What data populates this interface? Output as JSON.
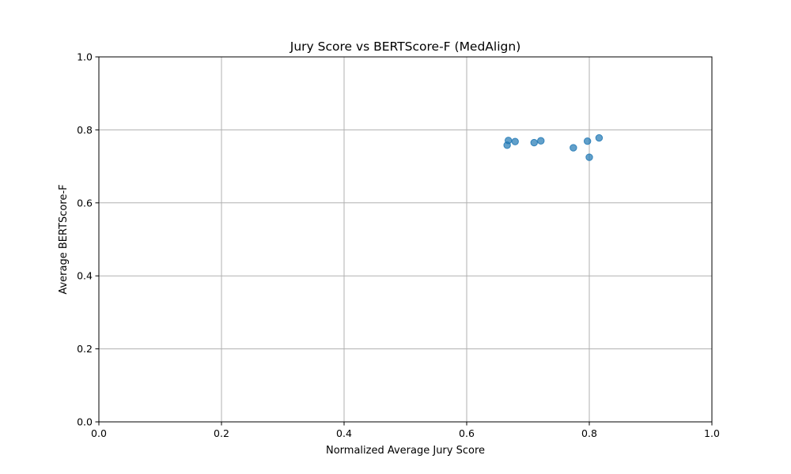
{
  "chart_data": {
    "type": "scatter",
    "title": "Jury Score vs BERTScore-F (MedAlign)",
    "xlabel": "Normalized Average Jury Score",
    "ylabel": "Average BERTScore-F",
    "xlim": [
      0.0,
      1.0
    ],
    "ylim": [
      0.0,
      1.0
    ],
    "xticks": [
      "0.0",
      "0.2",
      "0.4",
      "0.6",
      "0.8",
      "1.0"
    ],
    "yticks": [
      "0.0",
      "0.2",
      "0.4",
      "0.6",
      "0.8",
      "1.0"
    ],
    "grid": true,
    "point_color": "#1f77b4",
    "points": [
      {
        "x": 0.666,
        "y": 0.758
      },
      {
        "x": 0.668,
        "y": 0.771
      },
      {
        "x": 0.679,
        "y": 0.768
      },
      {
        "x": 0.71,
        "y": 0.765
      },
      {
        "x": 0.721,
        "y": 0.77
      },
      {
        "x": 0.774,
        "y": 0.751
      },
      {
        "x": 0.797,
        "y": 0.769
      },
      {
        "x": 0.8,
        "y": 0.725
      },
      {
        "x": 0.816,
        "y": 0.778
      }
    ]
  }
}
